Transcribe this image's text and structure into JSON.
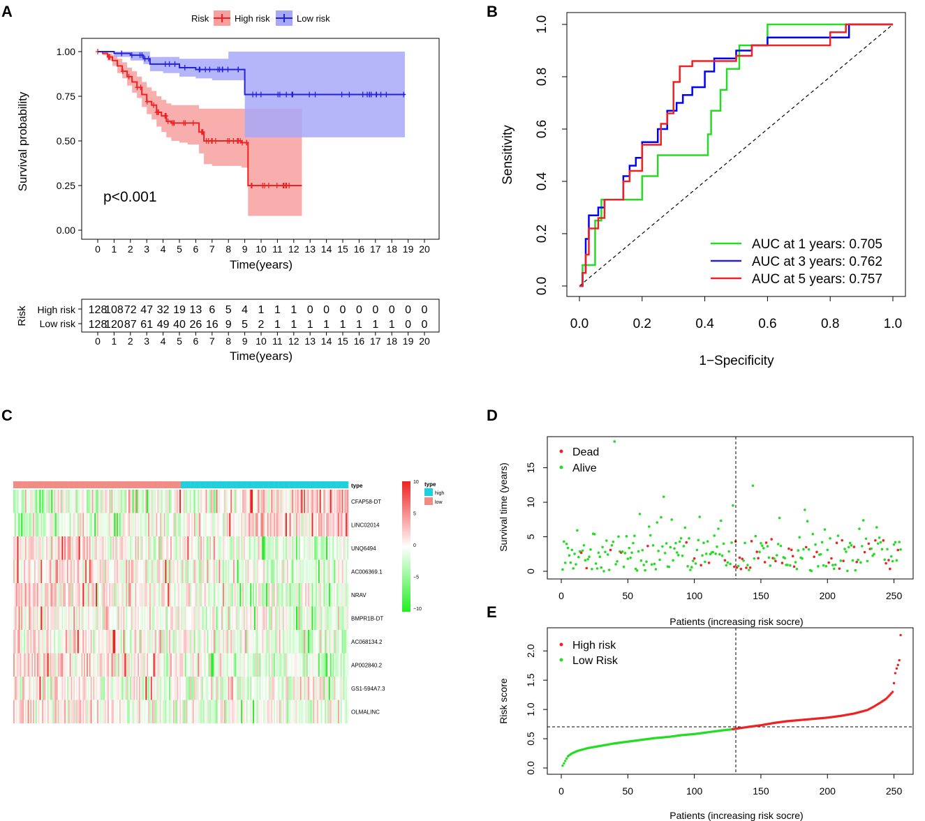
{
  "panel_labels": [
    "A",
    "B",
    "C",
    "D",
    "E"
  ],
  "colors": {
    "high": "#ee2222",
    "low": "#2222dd",
    "green": "#22dd22",
    "red": "#ee2222",
    "km_high_band": "#f8a0a0",
    "km_low_band": "#a8a8f8",
    "hm_low": "#22ee22",
    "hm_high": "#ee2222",
    "hm_mid": "#ffffff",
    "ann_high": "#1fcfdc",
    "ann_low": "#f08c84"
  },
  "chart_data": [
    {
      "id": "A",
      "type": "line",
      "subtype": "kaplan-meier",
      "legend_title": "Risk",
      "legend": [
        "High risk",
        "Low risk"
      ],
      "xlabel": "Time(years)",
      "ylabel": "Survival probability",
      "xlim": [
        0,
        20
      ],
      "ylim": [
        0,
        1
      ],
      "xticks": [
        0,
        1,
        2,
        3,
        4,
        5,
        6,
        7,
        8,
        9,
        10,
        11,
        12,
        13,
        14,
        15,
        16,
        17,
        18,
        19,
        20
      ],
      "yticks": [
        "0.00",
        "0.25",
        "0.50",
        "0.75",
        "1.00"
      ],
      "annotation": "p<0.001",
      "series": [
        {
          "name": "High risk",
          "x": [
            0,
            0.3,
            0.6,
            0.9,
            1.2,
            1.5,
            1.8,
            2.1,
            2.4,
            2.7,
            3,
            3.3,
            3.6,
            3.9,
            4.2,
            4.5,
            5,
            5.5,
            6.2,
            6.5,
            7,
            8,
            8.8,
            9,
            9.2,
            10,
            12.5
          ],
          "y": [
            1,
            0.99,
            0.97,
            0.95,
            0.92,
            0.89,
            0.86,
            0.83,
            0.8,
            0.76,
            0.72,
            0.7,
            0.66,
            0.64,
            0.61,
            0.6,
            0.6,
            0.6,
            0.55,
            0.5,
            0.5,
            0.5,
            0.49,
            0.49,
            0.25,
            0.25,
            0.25
          ],
          "lower": [
            1,
            0.98,
            0.95,
            0.92,
            0.88,
            0.85,
            0.81,
            0.77,
            0.74,
            0.69,
            0.65,
            0.62,
            0.58,
            0.55,
            0.52,
            0.5,
            0.49,
            0.48,
            0.43,
            0.37,
            0.36,
            0.36,
            0.35,
            0.35,
            0.08,
            0.08,
            0.08
          ],
          "upper": [
            1,
            1,
            0.99,
            0.98,
            0.96,
            0.94,
            0.91,
            0.89,
            0.86,
            0.83,
            0.8,
            0.78,
            0.75,
            0.73,
            0.71,
            0.7,
            0.7,
            0.7,
            0.68,
            0.68,
            0.68,
            0.68,
            0.68,
            0.68,
            0.68,
            0.68,
            0.68
          ]
        },
        {
          "name": "Low risk",
          "x": [
            0,
            1,
            2,
            2.8,
            3.2,
            4,
            5,
            5.5,
            6,
            7,
            8,
            8.8,
            9,
            9.5,
            11,
            18.8
          ],
          "y": [
            1,
            0.99,
            0.98,
            0.96,
            0.93,
            0.93,
            0.91,
            0.91,
            0.9,
            0.9,
            0.9,
            0.9,
            0.76,
            0.76,
            0.76,
            0.76
          ],
          "lower": [
            1,
            0.97,
            0.95,
            0.93,
            0.89,
            0.88,
            0.86,
            0.86,
            0.85,
            0.84,
            0.84,
            0.84,
            0.52,
            0.52,
            0.52,
            0.52
          ],
          "upper": [
            1,
            1,
            1,
            1,
            0.97,
            0.97,
            0.96,
            0.96,
            0.96,
            0.96,
            1,
            1,
            1,
            1,
            1,
            1
          ]
        }
      ],
      "risk_table": {
        "title": "Risk",
        "xlabel": "Time(years)",
        "rows": [
          {
            "name": "High risk",
            "values": [
              "128",
              "108",
              "72",
              "47",
              "32",
              "19",
              "13",
              "6",
              "5",
              "4",
              "1",
              "1",
              "1",
              "0",
              "0",
              "0",
              "0",
              "0",
              "0",
              "0",
              "0"
            ]
          },
          {
            "name": "Low risk",
            "values": [
              "128",
              "120",
              "87",
              "61",
              "49",
              "40",
              "26",
              "16",
              "9",
              "5",
              "2",
              "1",
              "1",
              "1",
              "1",
              "1",
              "1",
              "1",
              "1",
              "0",
              "0"
            ]
          }
        ]
      }
    },
    {
      "id": "B",
      "type": "line",
      "subtype": "roc",
      "xlabel": "1−Specificity",
      "ylabel": "Sensitivity",
      "xlim": [
        0,
        1
      ],
      "ylim": [
        0,
        1
      ],
      "xticks": [
        "0.0",
        "0.2",
        "0.4",
        "0.6",
        "0.8",
        "1.0"
      ],
      "yticks": [
        "0.0",
        "0.2",
        "0.4",
        "0.6",
        "0.8",
        "1.0"
      ],
      "series": [
        {
          "name": "AUC at 1 years: 0.705",
          "color": "green",
          "x": [
            0,
            0.01,
            0.01,
            0.02,
            0.02,
            0.05,
            0.05,
            0.07,
            0.07,
            0.1,
            0.1,
            0.2,
            0.2,
            0.25,
            0.25,
            0.41,
            0.41,
            0.42,
            0.42,
            0.45,
            0.45,
            0.47,
            0.47,
            0.51,
            0.51,
            0.6,
            0.6,
            1.0
          ],
          "y": [
            0,
            0,
            0.08,
            0.08,
            0.08,
            0.08,
            0.25,
            0.25,
            0.33,
            0.33,
            0.33,
            0.33,
            0.42,
            0.42,
            0.5,
            0.5,
            0.58,
            0.58,
            0.67,
            0.67,
            0.75,
            0.75,
            0.83,
            0.83,
            0.92,
            0.92,
            1.0,
            1.0
          ]
        },
        {
          "name": "AUC at 3 years: 0.762",
          "color": "blue",
          "x": [
            0,
            0.01,
            0.01,
            0.02,
            0.02,
            0.03,
            0.03,
            0.06,
            0.06,
            0.08,
            0.08,
            0.14,
            0.14,
            0.16,
            0.16,
            0.18,
            0.18,
            0.2,
            0.2,
            0.25,
            0.25,
            0.28,
            0.28,
            0.31,
            0.31,
            0.33,
            0.33,
            0.36,
            0.36,
            0.4,
            0.4,
            0.43,
            0.43,
            0.5,
            0.5,
            0.55,
            0.55,
            0.6,
            0.6,
            0.86,
            0.86,
            1.0
          ],
          "y": [
            0,
            0,
            0.05,
            0.05,
            0.18,
            0.18,
            0.27,
            0.27,
            0.3,
            0.3,
            0.33,
            0.33,
            0.42,
            0.42,
            0.46,
            0.46,
            0.49,
            0.49,
            0.55,
            0.55,
            0.6,
            0.6,
            0.67,
            0.67,
            0.7,
            0.7,
            0.73,
            0.73,
            0.76,
            0.76,
            0.82,
            0.82,
            0.87,
            0.87,
            0.9,
            0.9,
            0.92,
            0.92,
            0.95,
            0.95,
            1.0,
            1.0
          ]
        },
        {
          "name": "AUC at 5 years: 0.757",
          "color": "red",
          "x": [
            0,
            0.01,
            0.01,
            0.02,
            0.02,
            0.03,
            0.03,
            0.06,
            0.06,
            0.08,
            0.08,
            0.14,
            0.14,
            0.16,
            0.16,
            0.2,
            0.2,
            0.26,
            0.26,
            0.28,
            0.28,
            0.3,
            0.3,
            0.32,
            0.32,
            0.36,
            0.36,
            0.43,
            0.43,
            0.5,
            0.5,
            0.55,
            0.55,
            0.6,
            0.6,
            0.8,
            0.8,
            0.85,
            0.85,
            1.0
          ],
          "y": [
            0,
            0,
            0.05,
            0.05,
            0.12,
            0.12,
            0.22,
            0.22,
            0.26,
            0.26,
            0.33,
            0.33,
            0.4,
            0.4,
            0.44,
            0.44,
            0.54,
            0.54,
            0.62,
            0.62,
            0.66,
            0.66,
            0.78,
            0.78,
            0.84,
            0.84,
            0.86,
            0.86,
            0.86,
            0.86,
            0.88,
            0.88,
            0.92,
            0.92,
            0.92,
            0.92,
            0.97,
            0.97,
            1.0,
            1.0
          ]
        }
      ]
    },
    {
      "id": "C",
      "type": "heatmap",
      "annotation_title": "type",
      "legend_title": "type",
      "type_legend": [
        "high",
        "low"
      ],
      "scale_ticks": [
        "10",
        "5",
        "0",
        "−5",
        "−10"
      ],
      "scale_range": [
        -10,
        10
      ],
      "n_columns": 256,
      "genes": [
        "CFAP58-DT",
        "LINC02014",
        "UNQ6494",
        "AC006369.1",
        "NRAV",
        "BMPR1B-DT",
        "AC068134.2",
        "AP002840.2",
        "GS1-594A7.3",
        "OLMALINC"
      ],
      "gene_bias": [
        0.6,
        0.7,
        -0.6,
        -0.5,
        -0.6,
        -0.4,
        -0.5,
        -0.6,
        -0.2,
        -0.3
      ]
    },
    {
      "id": "D",
      "type": "scatter",
      "xlabel": "Patients (increasing risk socre)",
      "ylabel": "Survival time (years)",
      "xlim": [
        0,
        256
      ],
      "ylim": [
        0,
        19
      ],
      "xticks": [
        "0",
        "50",
        "100",
        "150",
        "200",
        "250"
      ],
      "yticks": [
        "0",
        "5",
        "10",
        "15"
      ],
      "cutoff_x": 128,
      "legend": [
        "Dead",
        "Alive"
      ]
    },
    {
      "id": "E",
      "type": "scatter",
      "xlabel": "Patients (increasing risk socre)",
      "ylabel": "Risk score",
      "xlim": [
        0,
        256
      ],
      "ylim": [
        0,
        2.3
      ],
      "xticks": [
        "0",
        "50",
        "100",
        "150",
        "200",
        "250"
      ],
      "yticks": [
        "0.0",
        "0.5",
        "1.0",
        "1.5",
        "2.0"
      ],
      "cutoff_x": 128,
      "cutoff_y": 0.66,
      "legend": [
        "High risk",
        "Low Risk"
      ],
      "curve_x": [
        1,
        3,
        5,
        8,
        12,
        20,
        30,
        40,
        50,
        60,
        70,
        80,
        90,
        100,
        110,
        120,
        128,
        140,
        150,
        160,
        170,
        180,
        190,
        200,
        210,
        220,
        230,
        235,
        240,
        244,
        247,
        249,
        250,
        251,
        252,
        253,
        254,
        255
      ],
      "curve_y": [
        0.04,
        0.12,
        0.2,
        0.25,
        0.29,
        0.34,
        0.38,
        0.42,
        0.45,
        0.48,
        0.51,
        0.53,
        0.56,
        0.58,
        0.61,
        0.64,
        0.66,
        0.7,
        0.73,
        0.77,
        0.8,
        0.82,
        0.84,
        0.86,
        0.89,
        0.93,
        0.99,
        1.05,
        1.12,
        1.18,
        1.25,
        1.3,
        1.45,
        1.62,
        1.7,
        1.76,
        1.84,
        2.27
      ]
    }
  ]
}
